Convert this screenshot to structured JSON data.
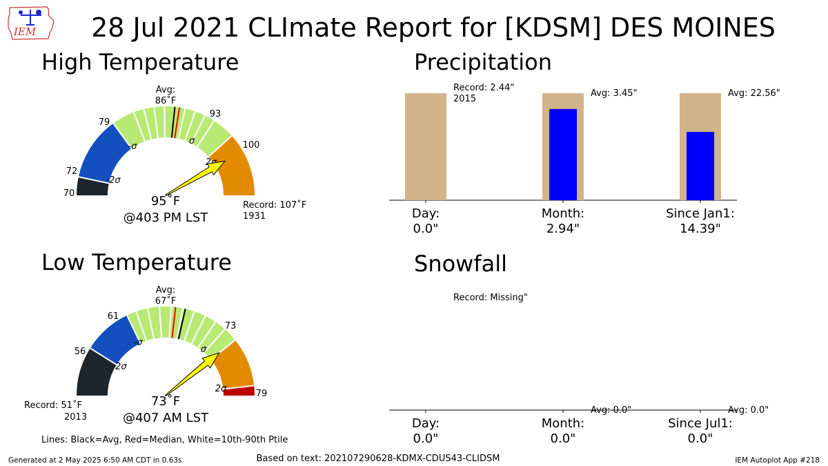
{
  "title": "28 Jul 2021 CLImate Report for [KDSM] DES MOINES",
  "logo_text": "IEM",
  "footer": {
    "generated": "Generated at 2 May 2025 6:50 AM CDT in 0.63s",
    "based_on": "Based on text: 202107290628-KDMX-CDUS43-CLIDSM",
    "app": "IEM Autoplot App #218",
    "lines_legend": "Lines: Black=Avg, Red=Median, White=10th-90th Ptile"
  },
  "colors": {
    "below_2sigma": "#1c262c",
    "below_1sigma": "#144fc0",
    "normal": "#b9e975",
    "above_1sigma": "#e38b00",
    "above_2sigma": "#be0000",
    "arrow_fill": "#ffff00",
    "record_bar": "#d2b48c",
    "observed_bar": "#0000ff"
  },
  "chart_data": [
    {
      "type": "gauge",
      "title": "High Temperature",
      "min": 70,
      "max": 100,
      "minus_2sigma": 72,
      "minus_1sigma": 79,
      "plus_1sigma": 93,
      "plus_2sigma": 100,
      "record_max": 107,
      "ptile_10": 81.5,
      "ptile_90": 90.5,
      "avg": 86,
      "median": 86.5,
      "observed": 95,
      "tick_labels": [
        "70",
        "72",
        "79",
        "93",
        "100"
      ],
      "band_labels": [
        "-2σ",
        "-σ",
        "σ",
        "2σ"
      ],
      "avg_label": "Avg:",
      "avg_value_label": "86˚F",
      "value_label": "95˚F",
      "time_label": "@403 PM LST",
      "record_label": "Record: 107˚F",
      "record_year": "1931"
    },
    {
      "type": "gauge",
      "title": "Low Temperature",
      "min": 51,
      "max": 79,
      "minus_2sigma": 56,
      "minus_1sigma": 61,
      "plus_1sigma": 73,
      "plus_2sigma": 78,
      "ptile_10": 62,
      "ptile_90": 71.5,
      "avg": 67,
      "median": 66,
      "observed": 73,
      "tick_labels": [
        "56",
        "61",
        "73",
        "79"
      ],
      "band_labels": [
        "-2σ",
        "-σ",
        "σ",
        "2σ"
      ],
      "avg_label": "Avg:",
      "avg_value_label": "67˚F",
      "value_label": "73˚F",
      "time_label": "@407 AM LST",
      "record_label": "Record: 51˚F",
      "record_year": "2013"
    },
    {
      "type": "bar",
      "title": "Precipitation",
      "categories": [
        "Day:",
        "Month:",
        "Since Jan1:"
      ],
      "value_labels": [
        "0.0\"",
        "2.94\"",
        "14.39\""
      ],
      "observed": [
        0.0,
        2.94,
        14.39
      ],
      "reference": [
        2.44,
        3.45,
        22.56
      ],
      "annotations": [
        "Record: 2.44\"",
        "Avg: 3.45\"",
        "Avg: 22.56\""
      ],
      "record_year": "2015"
    },
    {
      "type": "bar",
      "title": "Snowfall",
      "categories": [
        "Day:",
        "Month:",
        "Since Jul1:"
      ],
      "value_labels": [
        "0.0\"",
        "0.0\"",
        "0.0\""
      ],
      "observed": [
        0.0,
        0.0,
        0.0
      ],
      "reference": [
        0.0,
        0.0,
        0.0
      ],
      "annotations": [
        "Record: Missing\"",
        "Avg: 0.0\"",
        "Avg: 0.0\""
      ]
    }
  ]
}
